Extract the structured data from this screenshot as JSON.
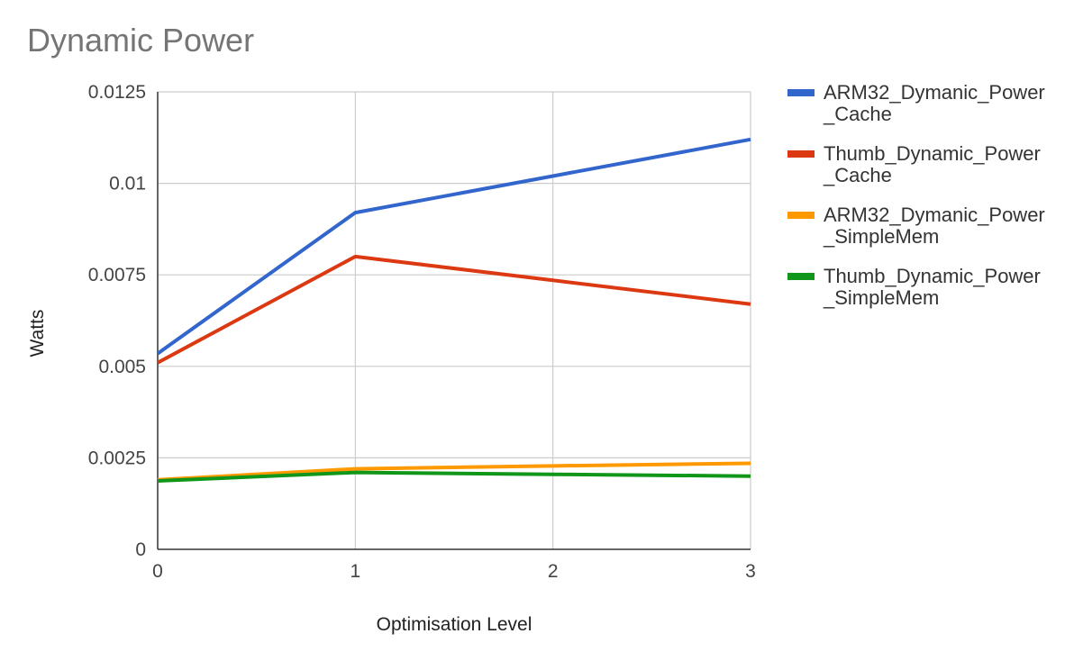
{
  "chart_data": {
    "type": "line",
    "title": "Dynamic Power",
    "xlabel": "Optimisation Level",
    "ylabel": "Watts",
    "x": [
      0,
      1,
      2,
      3
    ],
    "x_ticks": [
      "0",
      "1",
      "2",
      "3"
    ],
    "xlim": [
      0,
      3
    ],
    "ylim": [
      0,
      0.0125
    ],
    "y_ticks": [
      0,
      0.0025,
      0.005,
      0.0075,
      0.01,
      0.0125
    ],
    "y_tick_labels": [
      "0",
      "0.0025",
      "0.005",
      "0.0075",
      "0.01",
      "0.0125"
    ],
    "grid": true,
    "legend_position": "right",
    "series": [
      {
        "name": "ARM32_Dymanic_Power_Cache",
        "legend_lines": [
          "ARM32_Dymanic_Power",
          "_Cache"
        ],
        "color": "#3366cc",
        "values": [
          0.00535,
          0.0092,
          0.0102,
          0.0112
        ]
      },
      {
        "name": "Thumb_Dynamic_Power_Cache",
        "legend_lines": [
          "Thumb_Dynamic_Power",
          "_Cache"
        ],
        "color": "#dc3912",
        "values": [
          0.0051,
          0.008,
          0.00735,
          0.0067
        ]
      },
      {
        "name": "ARM32_Dymanic_Power_SimpleMem",
        "legend_lines": [
          "ARM32_Dymanic_Power",
          "_SimpleMem"
        ],
        "color": "#ff9900",
        "values": [
          0.0019,
          0.0022,
          0.00228,
          0.00235
        ]
      },
      {
        "name": "Thumb_Dynamic_Power_SimpleMem",
        "legend_lines": [
          "Thumb_Dynamic_Power",
          "_SimpleMem"
        ],
        "color": "#109618",
        "values": [
          0.00187,
          0.0021,
          0.00205,
          0.002
        ]
      }
    ]
  }
}
